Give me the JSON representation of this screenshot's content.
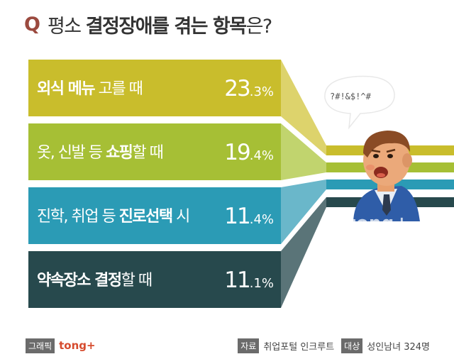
{
  "title": {
    "q": "Q",
    "pre": "평소 ",
    "bold": "결정장애를 겪는 항목",
    "post": "은?"
  },
  "chart_data": {
    "type": "bar",
    "title": "평소 결정장애를 겪는 항목은?",
    "categories": [
      "외식 메뉴 고를 때",
      "옷, 신발 등 쇼핑할 때",
      "진학, 취업 등 진로선택 시",
      "약속장소 결정할 때"
    ],
    "values": [
      23.3,
      19.4,
      11.4,
      11.1
    ],
    "label_parts": [
      {
        "normal1": "",
        "bold": "외식 메뉴",
        "normal2": " 고를 때"
      },
      {
        "normal1": "옷, 신발 등 ",
        "bold": "쇼핑",
        "normal2": "할 때"
      },
      {
        "normal1": "진학, 취업 등 ",
        "bold": "진로선택",
        "normal2": " 시"
      },
      {
        "normal1": "",
        "bold": "약속장소 결정",
        "normal2": "할 때"
      }
    ],
    "value_labels": [
      {
        "big": "23",
        "small": ".3%"
      },
      {
        "big": "19",
        "small": ".4%"
      },
      {
        "big": "11",
        "small": ".4%"
      },
      {
        "big": "11",
        "small": ".1%"
      }
    ],
    "colors": [
      "#c9bd2c",
      "#a6bf35",
      "#2b9bb5",
      "#27494d"
    ],
    "light_colors": [
      "#ddd36c",
      "#c1d46e",
      "#6ab7ca",
      "#5a7478"
    ]
  },
  "illustration": {
    "speech": "?#!&$!^#",
    "watermark": "tong+"
  },
  "footer": {
    "graphic_tag": "그래픽",
    "brand": "tong+",
    "source_tag": "자료",
    "source": "취업포털 인크루트",
    "target_tag": "대상",
    "target": "성인남녀 324명"
  }
}
